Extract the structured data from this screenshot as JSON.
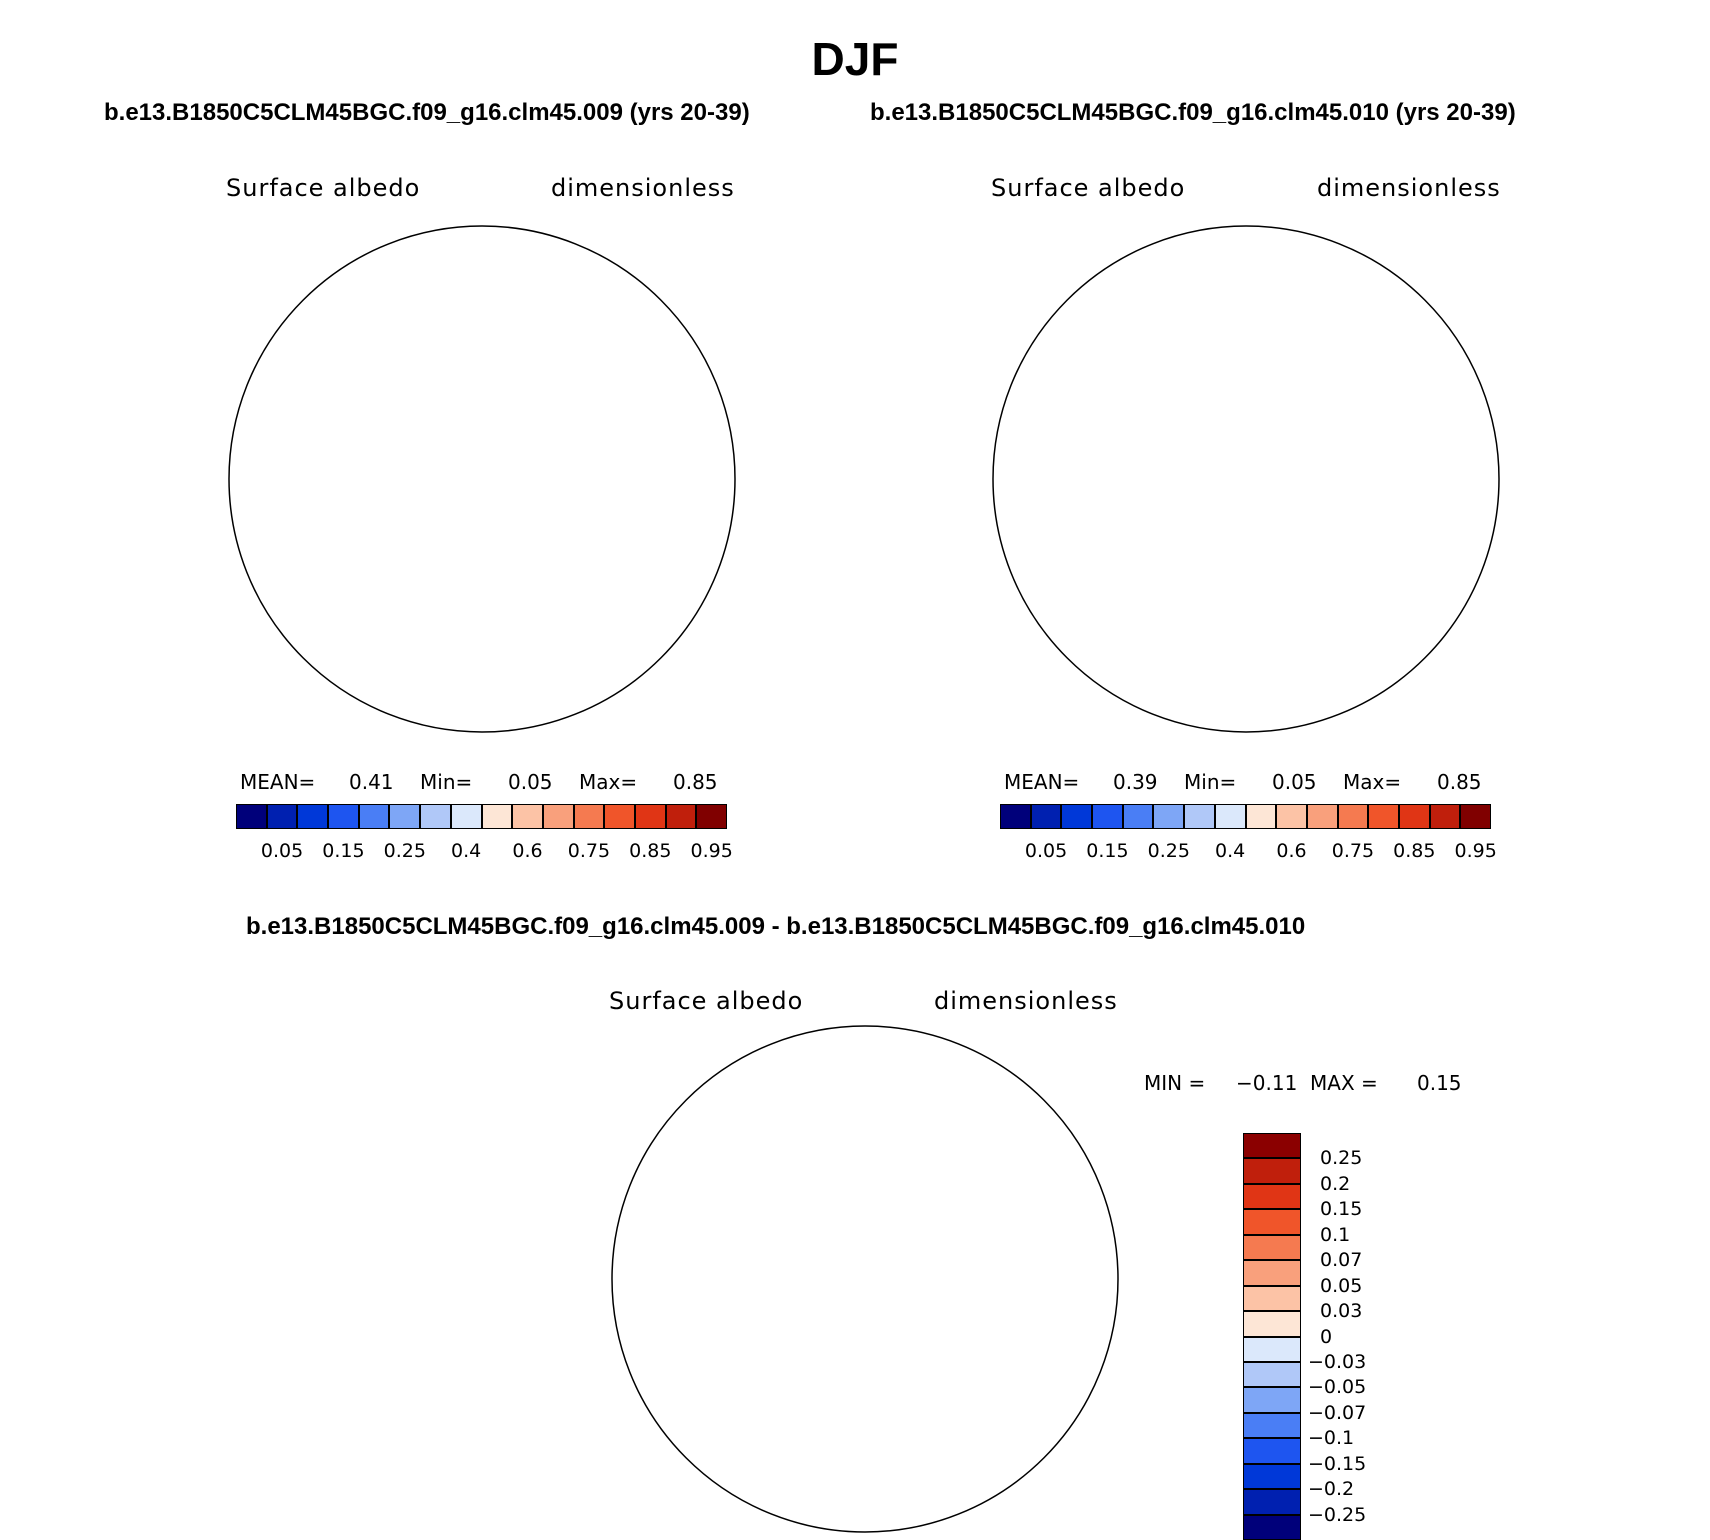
{
  "figure": {
    "title": "DJF",
    "left_panel_title": "b.e13.B1850C5CLM45BGC.f09_g16.clm45.009 (yrs 20-39)",
    "right_panel_title": "b.e13.B1850C5CLM45BGC.f09_g16.clm45.010 (yrs 20-39)",
    "diff_title": "b.e13.B1850C5CLM45BGC.f09_g16.clm45.009 - b.e13.B1850C5CLM45BGC.f09_g16.clm45.010"
  },
  "panels": {
    "left": {
      "variable": "Surface albedo",
      "units": "dimensionless",
      "mean_label": "MEAN=",
      "mean": "0.41",
      "min_label": "Min=",
      "min": "0.05",
      "max_label": "Max=",
      "max": "0.85"
    },
    "right": {
      "variable": "Surface albedo",
      "units": "dimensionless",
      "mean_label": "MEAN=",
      "mean": "0.39",
      "min_label": "Min=",
      "min": "0.05",
      "max_label": "Max=",
      "max": "0.85"
    },
    "diff": {
      "variable": "Surface albedo",
      "units": "dimensionless",
      "min_label": "MIN =",
      "min": "−0.11",
      "max_label": "MAX =",
      "max": "0.15"
    }
  },
  "colorbar_abs": {
    "colors": [
      "#00007a",
      "#0020b0",
      "#0038d8",
      "#1e55f0",
      "#4a7ef5",
      "#7ea6f6",
      "#b0c8f8",
      "#dbe8fb",
      "#fde6d6",
      "#fcc3a6",
      "#f9a07c",
      "#f57a50",
      "#f0552a",
      "#e03515",
      "#c01f0c",
      "#800000"
    ],
    "tick_labels": [
      "0.05",
      "0.15",
      "0.25",
      "0.4",
      "0.6",
      "0.75",
      "0.85",
      "0.95"
    ]
  },
  "colorbar_diff": {
    "colors": [
      "#00007a",
      "#0020b0",
      "#0038d8",
      "#1e55f0",
      "#4a7ef5",
      "#7ea6f6",
      "#b0c8f8",
      "#dbe8fb",
      "#fde6d6",
      "#fcc3a6",
      "#f9a07c",
      "#f57a50",
      "#f0552a",
      "#e03515",
      "#c01f0c",
      "#8b0000"
    ],
    "tick_labels": [
      "0.25",
      "0.2",
      "0.15",
      "0.1",
      "0.07",
      "0.05",
      "0.03",
      "0",
      "−0.03",
      "−0.05",
      "−0.07",
      "−0.1",
      "−0.15",
      "−0.2",
      "−0.25"
    ]
  },
  "map_colors": {
    "ocean_far": "#0028c0",
    "ring2": "#1e4fe8",
    "ring3": "#4a7ef5",
    "ring4": "#86acf6",
    "ring5": "#bcd3f9",
    "ring6": "#dbe8fb",
    "ring7": "#fde6d6",
    "ring8": "#fcc9ae",
    "continent": "#f4501e",
    "diff_base": "#fde6d6",
    "diff_blue": "#dbe8fb",
    "diff_orange": "#f9a07c",
    "diff_red": "#f0552a"
  }
}
